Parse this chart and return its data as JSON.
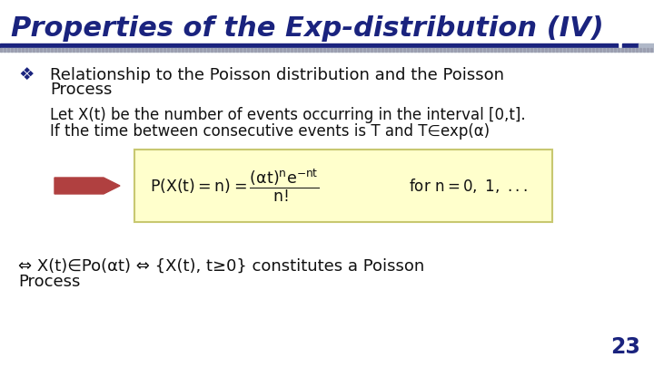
{
  "title": "Properties of the Exp-distribution (IV)",
  "title_color": "#1a237e",
  "bg_color": "#ffffff",
  "separator_dark": "#1a237e",
  "separator_light": "#b0b8c8",
  "bullet_color": "#1a237e",
  "bullet_char": "❖",
  "bullet_line1": "Relationship to the Poisson distribution and the Poisson",
  "bullet_line2": "Process",
  "body1": "Let X(t) be the number of events occurring in the interval [0,t].",
  "body2": "If the time between consecutive events is T and T∈exp(α)",
  "formula_bg": "#ffffcc",
  "formula_border": "#c8c870",
  "arrow_color": "#b04040",
  "bottom1": "⇔ X(t)∈Po(αt) ⇔ {X(t), t≥0} constitutes a Poisson",
  "bottom2": "Process",
  "page_num": "23",
  "page_color": "#1a237e",
  "text_color": "#111111",
  "indent_bullet": 20,
  "indent_text": 55,
  "indent_body": 55
}
